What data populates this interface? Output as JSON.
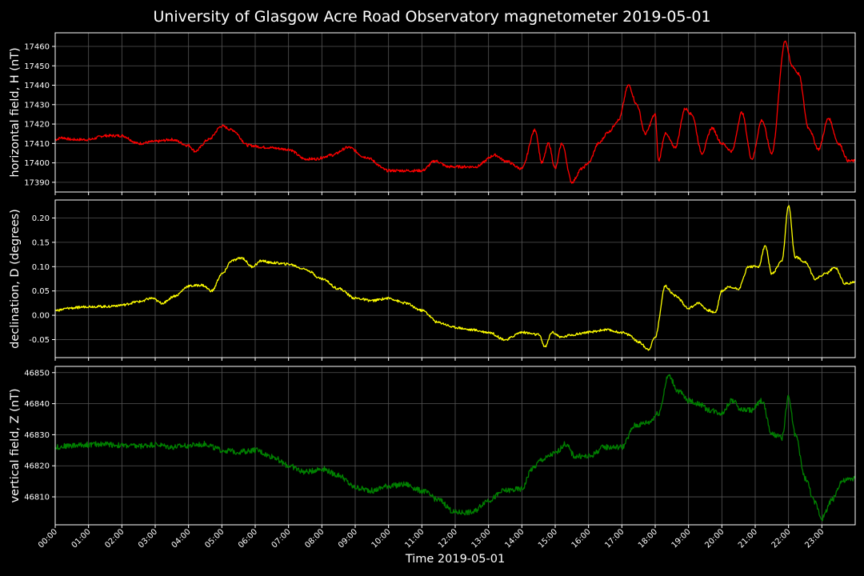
{
  "title": "University of Glasgow Acre Road Observatory magnetometer 2019-05-01",
  "xlabel": "Time 2019-05-01",
  "colors": {
    "background": "#000000",
    "axes": "#ffffff",
    "grid": "#555555",
    "H": "#ff0000",
    "D": "#ffff00",
    "Z": "#008000"
  },
  "chart_data": {
    "type": "line",
    "x_ticks": [
      "00:00",
      "01:00",
      "02:00",
      "03:00",
      "04:00",
      "05:00",
      "06:00",
      "07:00",
      "08:00",
      "09:00",
      "10:00",
      "11:00",
      "12:00",
      "13:00",
      "14:00",
      "15:00",
      "16:00",
      "17:00",
      "18:00",
      "19:00",
      "20:00",
      "21:00",
      "22:00",
      "23:00"
    ],
    "xlim_hours": [
      0,
      24
    ],
    "grid": true,
    "panels": [
      {
        "ylabel": "horizontal field, H (nT)",
        "color": "#ff0000",
        "ylim": [
          17385,
          17467
        ],
        "yticks": [
          "17390",
          "17400",
          "17410",
          "17420",
          "17430",
          "17440",
          "17450",
          "17460"
        ],
        "ytick_values": [
          17390,
          17400,
          17410,
          17420,
          17430,
          17440,
          17450,
          17460
        ],
        "noise": 0.7,
        "hours": [
          0,
          0.2,
          0.5,
          1,
          1.5,
          2,
          2.5,
          3,
          3.5,
          4,
          4.2,
          4.6,
          5,
          5.3,
          5.8,
          6.3,
          7,
          7.5,
          7.8,
          8.3,
          8.8,
          9.3,
          10,
          11,
          11.4,
          11.8,
          12.2,
          12.6,
          13.2,
          13.5,
          14,
          14.4,
          14.6,
          14.8,
          15.0,
          15.2,
          15.5,
          15.8,
          16.0,
          16.3,
          16.6,
          16.9,
          17.2,
          17.45,
          17.7,
          18.0,
          18.1,
          18.3,
          18.6,
          18.9,
          19.1,
          19.4,
          19.7,
          20.0,
          20.3,
          20.6,
          20.9,
          21.2,
          21.5,
          21.9,
          22.1,
          22.3,
          22.6,
          22.9,
          23.2,
          23.5,
          23.8,
          24
        ],
        "values": [
          17412,
          17413,
          17412,
          17412,
          17414,
          17414,
          17410,
          17411,
          17412,
          17409,
          17406,
          17412,
          17419,
          17417,
          17409,
          17408,
          17407,
          17402,
          17402,
          17404,
          17408,
          17403,
          17396,
          17396,
          17401,
          17398,
          17398,
          17398,
          17404,
          17401,
          17397,
          17417,
          17400,
          17410,
          17397,
          17410,
          17390,
          17397,
          17400,
          17410,
          17416,
          17422,
          17440,
          17430,
          17415,
          17425,
          17401,
          17415,
          17408,
          17428,
          17425,
          17405,
          17418,
          17410,
          17406,
          17426,
          17402,
          17422,
          17405,
          17463,
          17450,
          17446,
          17418,
          17407,
          17423,
          17410,
          17401,
          17401
        ]
      },
      {
        "ylabel": "declination, D (degrees)",
        "color": "#ffff00",
        "ylim": [
          -0.087,
          0.237
        ],
        "yticks": [
          "-0.05",
          "0.00",
          "0.05",
          "0.10",
          "0.15",
          "0.20"
        ],
        "ytick_values": [
          -0.05,
          0,
          0.05,
          0.1,
          0.15,
          0.2
        ],
        "noise": 0.0025,
        "hours": [
          0,
          0.5,
          1,
          1.5,
          2,
          2.5,
          2.9,
          3.2,
          3.6,
          4,
          4.4,
          4.7,
          5,
          5.3,
          5.6,
          5.9,
          6.2,
          6.5,
          7,
          7.5,
          8,
          8.5,
          9,
          9.5,
          10,
          10.5,
          11,
          11.5,
          12,
          12.5,
          13,
          13.5,
          14,
          14.5,
          14.7,
          14.9,
          15.2,
          15.5,
          16,
          16.5,
          17,
          17.2,
          17.5,
          17.8,
          18.0,
          18.3,
          18.6,
          19.0,
          19.3,
          19.6,
          19.8,
          20.0,
          20.2,
          20.5,
          20.8,
          21.1,
          21.3,
          21.5,
          21.8,
          22.0,
          22.2,
          22.5,
          22.8,
          23.1,
          23.4,
          23.7,
          24
        ],
        "values": [
          0.01,
          0.015,
          0.018,
          0.018,
          0.021,
          0.028,
          0.035,
          0.025,
          0.04,
          0.06,
          0.062,
          0.05,
          0.085,
          0.112,
          0.118,
          0.1,
          0.112,
          0.108,
          0.105,
          0.095,
          0.075,
          0.055,
          0.035,
          0.03,
          0.035,
          0.025,
          0.01,
          -0.015,
          -0.025,
          -0.03,
          -0.035,
          -0.05,
          -0.035,
          -0.04,
          -0.065,
          -0.035,
          -0.045,
          -0.04,
          -0.035,
          -0.03,
          -0.035,
          -0.04,
          -0.055,
          -0.07,
          -0.045,
          0.06,
          0.04,
          0.015,
          0.025,
          0.01,
          0.005,
          0.05,
          0.058,
          0.055,
          0.1,
          0.1,
          0.143,
          0.085,
          0.11,
          0.225,
          0.12,
          0.11,
          0.075,
          0.085,
          0.098,
          0.065,
          0.068
        ]
      },
      {
        "ylabel": "vertical field, Z (nT)",
        "color": "#008000",
        "ylim": [
          46801,
          46852
        ],
        "yticks": [
          "46810",
          "46820",
          "46830",
          "46840",
          "46850"
        ],
        "ytick_values": [
          46810,
          46820,
          46830,
          46840,
          46850
        ],
        "noise": 0.9,
        "hours": [
          0,
          0.5,
          1,
          1.5,
          2,
          2.5,
          3,
          3.5,
          4,
          4.5,
          5,
          5.5,
          6,
          6.5,
          7,
          7.5,
          8,
          8.5,
          9,
          9.5,
          10,
          10.5,
          11,
          11.5,
          12,
          12.5,
          13,
          13.5,
          14,
          14.3,
          14.6,
          15.0,
          15.3,
          15.6,
          16.0,
          16.5,
          17.0,
          17.4,
          17.8,
          18.1,
          18.4,
          18.7,
          19.0,
          19.3,
          19.6,
          20.0,
          20.3,
          20.6,
          20.9,
          21.2,
          21.5,
          21.8,
          22.0,
          22.2,
          22.5,
          22.8,
          23.0,
          23.3,
          23.6,
          24
        ],
        "values": [
          46826,
          46826.5,
          46826.8,
          46827,
          46826.5,
          46826.3,
          46826.8,
          46826,
          46826.5,
          46827,
          46825,
          46824.5,
          46825,
          46823,
          46820,
          46818,
          46819,
          46817,
          46813,
          46812,
          46813.5,
          46814,
          46812,
          46809,
          46805,
          46805,
          46809,
          46812,
          46812.5,
          46819,
          46822,
          46824,
          46827,
          46823,
          46823,
          46826,
          46826,
          46833,
          46834,
          46837,
          46849,
          46844,
          46841,
          46840,
          46838,
          46837,
          46841,
          46838,
          46838,
          46841,
          46830,
          46829,
          46842,
          46830,
          46816,
          46808,
          46803,
          46809,
          46815,
          46816
        ]
      }
    ]
  }
}
